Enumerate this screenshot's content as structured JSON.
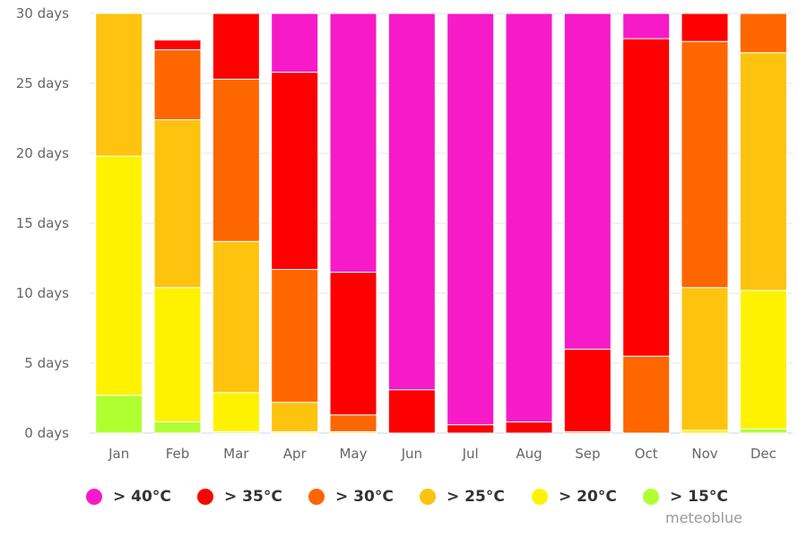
{
  "chart_data": {
    "type": "bar",
    "stacked": true,
    "title": "",
    "xlabel": "",
    "ylabel": "",
    "ylim": [
      0,
      30
    ],
    "yticks": [
      0,
      5,
      10,
      15,
      20,
      25,
      30
    ],
    "ytick_labels": [
      "0 days",
      "5 days",
      "10 days",
      "15 days",
      "20 days",
      "25 days",
      "30 days"
    ],
    "grid": true,
    "legend_position": "bottom",
    "categories": [
      "Jan",
      "Feb",
      "Mar",
      "Apr",
      "May",
      "Jun",
      "Jul",
      "Aug",
      "Sep",
      "Oct",
      "Nov",
      "Dec"
    ],
    "series": [
      {
        "name": "> 15°C",
        "color": "#b0ff30",
        "values": [
          2.7,
          0.8,
          0.1,
          0,
          0,
          0,
          0,
          0,
          0,
          0,
          0,
          0.3
        ]
      },
      {
        "name": "> 20°C",
        "color": "#fff200",
        "values": [
          17.1,
          9.6,
          2.8,
          0.1,
          0,
          0,
          0,
          0,
          0,
          0,
          0.2,
          9.9
        ]
      },
      {
        "name": "> 25°C",
        "color": "#fec30e",
        "values": [
          10.2,
          12.0,
          10.8,
          2.1,
          0.1,
          0,
          0,
          0,
          0,
          0,
          10.2,
          17.0
        ]
      },
      {
        "name": "> 30°C",
        "color": "#fe6600",
        "values": [
          0,
          5.0,
          11.6,
          9.5,
          1.2,
          0,
          0,
          0,
          0.1,
          5.5,
          17.6,
          2.8
        ]
      },
      {
        "name": "> 35°C",
        "color": "#fe0000",
        "values": [
          0,
          0.7,
          4.7,
          14.1,
          10.2,
          3.1,
          0.6,
          0.8,
          5.9,
          22.7,
          2.0,
          0
        ]
      },
      {
        "name": "> 40°C",
        "color": "#f71ac8",
        "values": [
          0,
          0,
          0,
          4.2,
          18.5,
          26.9,
          29.4,
          29.2,
          24.0,
          1.8,
          0,
          0
        ]
      }
    ],
    "legend_order": [
      "> 40°C",
      "> 35°C",
      "> 30°C",
      "> 25°C",
      "> 20°C",
      "> 15°C"
    ]
  },
  "credit": "meteoblue"
}
